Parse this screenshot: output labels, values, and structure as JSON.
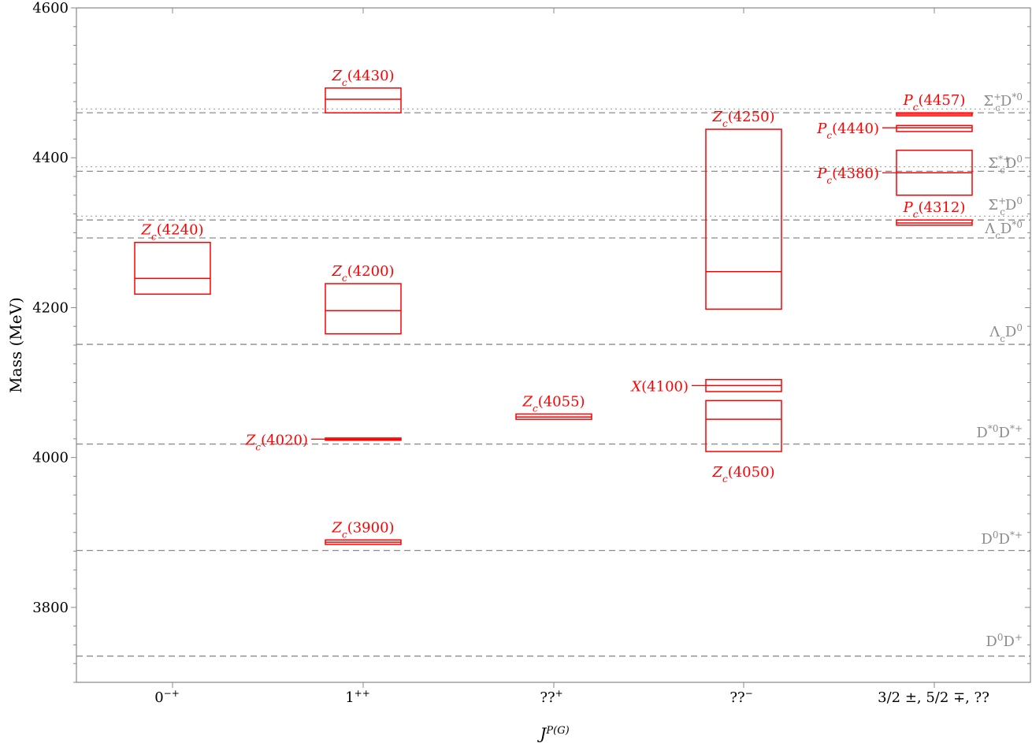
{
  "chart_data": {
    "type": "box",
    "xlabel": "J",
    "xlabel_sup": "P(G)",
    "ylabel": "Mass (MeV)",
    "ylim": [
      3700,
      4600
    ],
    "yticks": [
      3800,
      4000,
      4200,
      4400,
      4600
    ],
    "categories": [
      "0",
      "1",
      "??",
      "??",
      "3/2 ±, 5/2 ∓, ??"
    ],
    "category_sups": [
      "−+",
      "++",
      "+",
      "−",
      ""
    ],
    "states": [
      {
        "name": "Z",
        "sub": "c",
        "paren": "(4240)",
        "category": 0,
        "low": 4218,
        "central": 4239,
        "high": 4287,
        "label_pos": "above"
      },
      {
        "name": "Z",
        "sub": "c",
        "paren": "(4430)",
        "category": 1,
        "low": 4460,
        "central": 4478,
        "high": 4493,
        "label_pos": "above"
      },
      {
        "name": "Z",
        "sub": "c",
        "paren": "(4200)",
        "category": 1,
        "low": 4165,
        "central": 4196,
        "high": 4232,
        "label_pos": "above"
      },
      {
        "name": "Z",
        "sub": "c",
        "paren": "(4020)",
        "category": 1,
        "low": 4023,
        "central": 4024.5,
        "high": 4026,
        "label_pos": "left"
      },
      {
        "name": "Z",
        "sub": "c",
        "paren": "(3900)",
        "category": 1,
        "low": 3884,
        "central": 3887,
        "high": 3890,
        "label_pos": "above"
      },
      {
        "name": "Z",
        "sub": "c",
        "paren": "(4055)",
        "category": 2,
        "low": 4051,
        "central": 4054,
        "high": 4058,
        "label_pos": "above"
      },
      {
        "name": "Z",
        "sub": "c",
        "paren": "(4250)",
        "category": 3,
        "low": 4198,
        "central": 4248,
        "high": 4438,
        "label_pos": "above"
      },
      {
        "name": "X",
        "sub": "",
        "paren": "(4100)",
        "category": 3,
        "low": 4088,
        "central": 4096,
        "high": 4104,
        "label_pos": "left"
      },
      {
        "name": "Z",
        "sub": "c",
        "paren": "(4050)",
        "category": 3,
        "low": 4008,
        "central": 4051,
        "high": 4076,
        "label_pos": "below"
      },
      {
        "name": "P",
        "sub": "c",
        "paren": "(4457)",
        "category": 4,
        "low": 4456,
        "central": 4458,
        "high": 4460,
        "label_pos": "above"
      },
      {
        "name": "P",
        "sub": "c",
        "paren": "(4440)",
        "category": 4,
        "low": 4435,
        "central": 4440,
        "high": 4443,
        "label_pos": "left"
      },
      {
        "name": "P",
        "sub": "c",
        "paren": "(4380)",
        "category": 4,
        "low": 4350,
        "central": 4380,
        "high": 4410,
        "label_pos": "left"
      },
      {
        "name": "P",
        "sub": "c",
        "paren": "(4312)",
        "category": 4,
        "low": 4310,
        "central": 4313,
        "high": 4317,
        "label_pos": "above"
      }
    ],
    "thresholds_dashed": [
      {
        "mass": 3735,
        "label": "D⁰D⁺"
      },
      {
        "mass": 3876,
        "label": "D⁰D*⁺"
      },
      {
        "mass": 4018,
        "label": "D*⁰D*⁺"
      },
      {
        "mass": 4151,
        "label": "Λ_cD⁰"
      },
      {
        "mass": 4293,
        "label": "Λ_cD*⁰"
      },
      {
        "mass": 4317,
        "label": "Σ_c⁺D⁰"
      },
      {
        "mass": 4382,
        "label": "Σ_c*⁺D⁰"
      },
      {
        "mass": 4460,
        "label": "Σ_c⁺D*⁰"
      }
    ],
    "thresholds_dotted": [
      4322,
      4388,
      4465
    ],
    "colors": {
      "states": "#ff0000",
      "thresholds": "#8c8c8c",
      "axes": "#888888"
    }
  }
}
